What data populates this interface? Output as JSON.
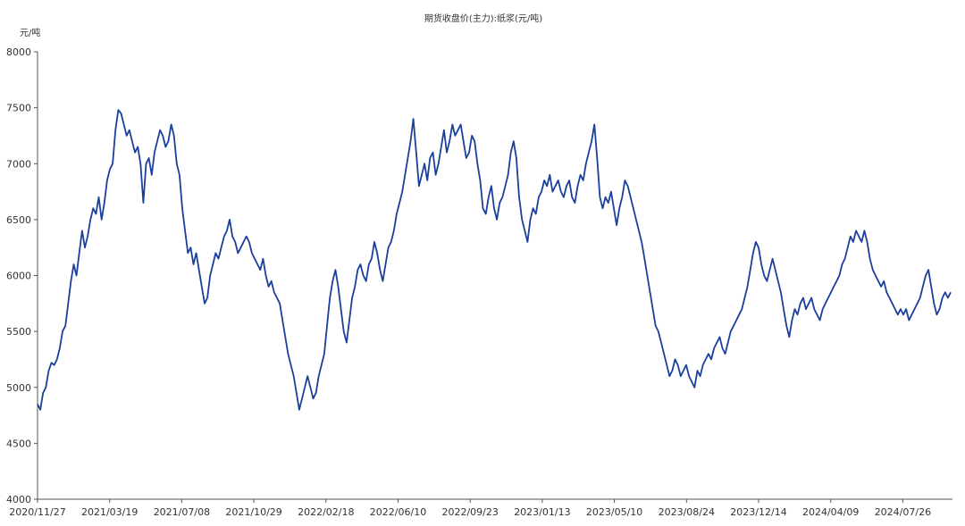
{
  "chart_data": {
    "type": "line",
    "title": "期货收盘价(主力):纸浆(元/吨)",
    "ylabel": "元/吨",
    "xlabel": "",
    "ylim": [
      4000,
      8000
    ],
    "yticks": [
      "8000",
      "7500",
      "7000",
      "6500",
      "6000",
      "5500",
      "5000",
      "4500",
      "4000"
    ],
    "xticks": [
      "2020/11/27",
      "2021/03/19",
      "2021/07/08",
      "2021/10/29",
      "2022/02/18",
      "2022/06/10",
      "2022/09/23",
      "2023/01/13",
      "2023/05/10",
      "2023/08/24",
      "2023/12/14",
      "2024/04/09",
      "2024/07/26"
    ],
    "grid": false,
    "legend": "none",
    "line_color": "#1a3f9c",
    "series": [
      {
        "name": "",
        "values": [
          4850,
          4800,
          4950,
          5000,
          5150,
          5220,
          5200,
          5250,
          5350,
          5500,
          5550,
          5750,
          5950,
          6100,
          6000,
          6200,
          6400,
          6250,
          6350,
          6500,
          6600,
          6550,
          6700,
          6500,
          6650,
          6850,
          6950,
          7000,
          7300,
          7480,
          7450,
          7350,
          7250,
          7300,
          7200,
          7100,
          7150,
          7000,
          6650,
          7000,
          7050,
          6900,
          7100,
          7200,
          7300,
          7250,
          7150,
          7200,
          7350,
          7250,
          7000,
          6900,
          6600,
          6400,
          6200,
          6250,
          6100,
          6200,
          6050,
          5900,
          5750,
          5800,
          6000,
          6100,
          6200,
          6150,
          6250,
          6350,
          6400,
          6500,
          6350,
          6300,
          6200,
          6250,
          6300,
          6350,
          6300,
          6200,
          6150,
          6100,
          6050,
          6150,
          6000,
          5900,
          5950,
          5850,
          5800,
          5750,
          5600,
          5450,
          5300,
          5200,
          5100,
          4950,
          4800,
          4900,
          5000,
          5100,
          5000,
          4900,
          4950,
          5100,
          5200,
          5300,
          5550,
          5800,
          5950,
          6050,
          5900,
          5700,
          5500,
          5400,
          5600,
          5800,
          5900,
          6050,
          6100,
          6000,
          5950,
          6100,
          6150,
          6300,
          6200,
          6050,
          5950,
          6100,
          6250,
          6300,
          6400,
          6550,
          6650,
          6750,
          6900,
          7050,
          7200,
          7400,
          7100,
          6800,
          6900,
          7000,
          6850,
          7050,
          7100,
          6900,
          7000,
          7150,
          7300,
          7100,
          7200,
          7350,
          7250,
          7300,
          7350,
          7200,
          7050,
          7100,
          7250,
          7200,
          7000,
          6850,
          6600,
          6550,
          6700,
          6800,
          6600,
          6500,
          6650,
          6700,
          6800,
          6900,
          7100,
          7200,
          7050,
          6700,
          6500,
          6400,
          6300,
          6500,
          6600,
          6550,
          6700,
          6750,
          6850,
          6800,
          6900,
          6750,
          6800,
          6850,
          6750,
          6700,
          6800,
          6850,
          6700,
          6650,
          6800,
          6900,
          6850,
          7000,
          7100,
          7200,
          7350,
          7050,
          6700,
          6600,
          6700,
          6650,
          6750,
          6600,
          6450,
          6600,
          6700,
          6850,
          6800,
          6700,
          6600,
          6500,
          6400,
          6300,
          6150,
          6000,
          5850,
          5700,
          5550,
          5500,
          5400,
          5300,
          5200,
          5100,
          5150,
          5250,
          5200,
          5100,
          5150,
          5200,
          5100,
          5050,
          5000,
          5150,
          5100,
          5200,
          5250,
          5300,
          5250,
          5350,
          5400,
          5450,
          5350,
          5300,
          5400,
          5500,
          5550,
          5600,
          5650,
          5700,
          5800,
          5900,
          6050,
          6200,
          6300,
          6250,
          6100,
          6000,
          5950,
          6050,
          6150,
          6050,
          5950,
          5850,
          5700,
          5550,
          5450,
          5600,
          5700,
          5650,
          5750,
          5800,
          5700,
          5750,
          5800,
          5700,
          5650,
          5600,
          5700,
          5750,
          5800,
          5850,
          5900,
          5950,
          6000,
          6100,
          6150,
          6250,
          6350,
          6300,
          6400,
          6350,
          6300,
          6400,
          6300,
          6150,
          6050,
          6000,
          5950,
          5900,
          5950,
          5850,
          5800,
          5750,
          5700,
          5650,
          5700,
          5650,
          5700,
          5600,
          5650,
          5700,
          5750,
          5800,
          5900,
          6000,
          6050,
          5900,
          5750,
          5650,
          5700,
          5800,
          5850,
          5800,
          5850
        ]
      }
    ]
  }
}
